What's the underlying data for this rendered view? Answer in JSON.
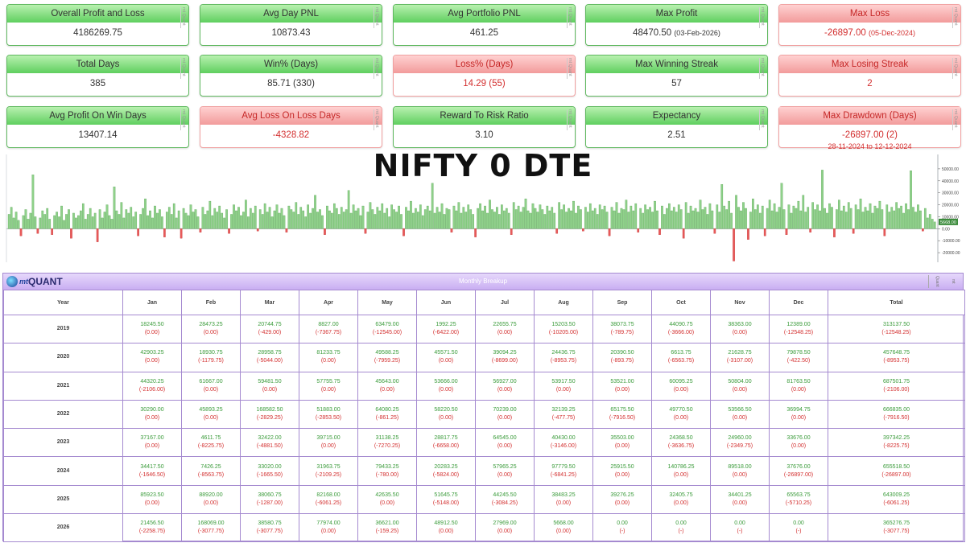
{
  "cards": [
    {
      "label": "Overall Profit and Loss",
      "value": "4186269.75",
      "tone": "g"
    },
    {
      "label": "Avg Day PNL",
      "value": "10873.43",
      "tone": "g"
    },
    {
      "label": "Avg Portfolio PNL",
      "value": "461.25",
      "tone": "g"
    },
    {
      "label": "Max Profit",
      "value": "48470.50",
      "extra": "(03-Feb-2026)",
      "tone": "g"
    },
    {
      "label": "Max Loss",
      "value": "-26897.00",
      "extra": "(05-Dec-2024)",
      "tone": "r"
    },
    {
      "label": "Total Days",
      "value": "385",
      "tone": "g"
    },
    {
      "label": "Win% (Days)",
      "value": "85.71 (330)",
      "tone": "g"
    },
    {
      "label": "Loss% (Days)",
      "value": "14.29 (55)",
      "tone": "r"
    },
    {
      "label": "Max Winning Streak",
      "value": "57",
      "tone": "g"
    },
    {
      "label": "Max Losing Streak",
      "value": "2",
      "tone": "r"
    },
    {
      "label": "Avg Profit On Win Days",
      "value": "13407.14",
      "tone": "g"
    },
    {
      "label": "Avg Loss On Loss Days",
      "value": "-4328.82",
      "tone": "r"
    },
    {
      "label": "Reward To Risk Ratio",
      "value": "3.10",
      "tone": "g"
    },
    {
      "label": "Expectancy",
      "value": "2.51",
      "tone": "g"
    },
    {
      "label": "Max Drawdown (Days)",
      "value": "-26897.00 (2)",
      "sub": "28-11-2024 to 12-12-2024",
      "tone": "r"
    }
  ],
  "watermark": "mt Quant",
  "chart_data": {
    "type": "bar",
    "title": "NIFTY 0 DTE",
    "ylim": [
      -28000,
      62000
    ],
    "yticks": [
      -20000,
      -10000,
      0,
      10000,
      20000,
      30000,
      40000,
      50000
    ],
    "ytick_labels": [
      "-20000.00",
      "-10000.00",
      "0.00",
      "10000.00",
      "20000.00",
      "30000.00",
      "40000.00",
      "50000.00"
    ],
    "last_value_label": "5668.00",
    "values": [
      12000,
      18000,
      9000,
      14000,
      7000,
      -6000,
      11000,
      16000,
      8000,
      13000,
      45000,
      10000,
      -4000,
      9000,
      15000,
      12000,
      17000,
      8000,
      -5000,
      11000,
      14000,
      10000,
      19000,
      7000,
      12000,
      16000,
      -8000,
      13000,
      9000,
      11000,
      15000,
      21000,
      8000,
      12000,
      17000,
      10000,
      13000,
      -11000,
      16000,
      9000,
      14000,
      20000,
      11000,
      8000,
      35000,
      15000,
      12000,
      22000,
      9000,
      16000,
      13000,
      18000,
      10000,
      14000,
      -6000,
      12000,
      17000,
      25000,
      11000,
      15000,
      9000,
      19000,
      13000,
      16000,
      10000,
      -7000,
      14000,
      18000,
      12000,
      21000,
      9000,
      15000,
      -8000,
      17000,
      13000,
      11000,
      20000,
      14000,
      16000,
      10000,
      -3000,
      18000,
      12000,
      15000,
      23000,
      11000,
      17000,
      14000,
      19000,
      13000,
      9000,
      16000,
      -4000,
      12000,
      20000,
      15000,
      18000,
      11000,
      14000,
      24000,
      10000,
      17000,
      13000,
      19000,
      -2000,
      16000,
      12000,
      21000,
      14000,
      18000,
      10000,
      15000,
      20000,
      13000,
      17000,
      11000,
      -3000,
      19000,
      16000,
      14000,
      22000,
      12000,
      18000,
      15000,
      10000,
      20000,
      13000,
      17000,
      28000,
      14000,
      16000,
      11000,
      -5000,
      19000,
      15000,
      13000,
      21000,
      17000,
      12000,
      18000,
      14000,
      16000,
      32000,
      13000,
      20000,
      15000,
      17000,
      11000,
      19000,
      -4000,
      14000,
      22000,
      16000,
      12000,
      18000,
      15000,
      21000,
      13000,
      17000,
      10000,
      20000,
      16000,
      14000,
      19000,
      12000,
      -6000,
      18000,
      15000,
      23000,
      13000,
      17000,
      14000,
      20000,
      11000,
      16000,
      19000,
      15000,
      38000,
      13000,
      18000,
      14000,
      21000,
      12000,
      17000,
      16000,
      -3000,
      19000,
      15000,
      22000,
      13000,
      18000,
      14000,
      20000,
      16000,
      12000,
      -7000,
      17000,
      21000,
      15000,
      19000,
      13000,
      24000,
      16000,
      14000,
      18000,
      12000,
      20000,
      15000,
      17000,
      13000,
      -5000,
      22000,
      16000,
      19000,
      14000,
      18000,
      25000,
      15000,
      13000,
      21000,
      17000,
      14000,
      20000,
      16000,
      12000,
      19000,
      15000,
      18000,
      13000,
      -4000,
      22000,
      16000,
      20000,
      14000,
      17000,
      15000,
      23000,
      13000,
      19000,
      16000,
      -2000,
      18000,
      14000,
      21000,
      15000,
      17000,
      12000,
      20000,
      16000,
      19000,
      14000,
      -6000,
      18000,
      15000,
      22000,
      13000,
      17000,
      16000,
      24000,
      14000,
      19000,
      15000,
      21000,
      -3000,
      17000,
      13000,
      20000,
      16000,
      18000,
      14000,
      23000,
      15000,
      -5000,
      19000,
      12000,
      17000,
      21000,
      15000,
      18000,
      14000,
      20000,
      16000,
      -8000,
      22000,
      13000,
      19000,
      15000,
      17000,
      14000,
      24000,
      16000,
      18000,
      12000,
      21000,
      15000,
      -4000,
      20000,
      14000,
      37000,
      19000,
      16000,
      23000,
      13000,
      -27000,
      28000,
      18000,
      15000,
      22000,
      17000,
      -9000,
      14000,
      25000,
      16000,
      20000,
      13000,
      19000,
      -6000,
      17000,
      24000,
      15000,
      21000,
      14000,
      18000,
      38000,
      16000,
      -5000,
      20000,
      13000,
      19000,
      17000,
      23000,
      15000,
      28000,
      14000,
      18000,
      -3000,
      22000,
      16000,
      20000,
      15000,
      49000,
      17000,
      13000,
      21000,
      18000,
      -7000,
      16000,
      24000,
      15000,
      19000,
      14000,
      22000,
      17000,
      -4000,
      20000,
      16000,
      25000,
      14000,
      18000,
      15000,
      21000,
      13000,
      19000,
      17000,
      23000,
      16000,
      -6000,
      20000,
      14000,
      18000,
      15000,
      22000,
      17000,
      19000,
      13000,
      21000,
      16000,
      48470,
      18000,
      14000,
      20000,
      15000,
      -2000,
      17000,
      9000,
      12000,
      8000,
      5668
    ]
  },
  "table": {
    "header": "Monthly Breakup",
    "columns": [
      "Year",
      "Jan",
      "Feb",
      "Mar",
      "Apr",
      "May",
      "Jun",
      "Jul",
      "Aug",
      "Sep",
      "Oct",
      "Nov",
      "Dec",
      "Total"
    ],
    "rows": [
      {
        "year": "2019",
        "cells": [
          [
            "18245.50",
            "(0.00)"
          ],
          [
            "28473.25",
            "(0.00)"
          ],
          [
            "20744.75",
            "(-429.00)"
          ],
          [
            "8827.00",
            "(-7367.75)"
          ],
          [
            "63479.00",
            "(-12545.00)"
          ],
          [
            "1992.25",
            "(-6422.00)"
          ],
          [
            "22655.75",
            "(0.00)"
          ],
          [
            "15203.50",
            "(-10205.00)"
          ],
          [
            "38073.75",
            "(-789.75)"
          ],
          [
            "44090.75",
            "(-3666.00)"
          ],
          [
            "38363.00",
            "(0.00)"
          ],
          [
            "12389.00",
            "(-12548.25)"
          ],
          [
            "313137.50",
            "(-12548.25)"
          ]
        ]
      },
      {
        "year": "2020",
        "cells": [
          [
            "42903.25",
            "(0.00)"
          ],
          [
            "18930.75",
            "(-1179.75)"
          ],
          [
            "28958.75",
            "(-5044.00)"
          ],
          [
            "81233.75",
            "(0.00)"
          ],
          [
            "49588.25",
            "(-7959.25)"
          ],
          [
            "45571.50",
            "(0.00)"
          ],
          [
            "39094.25",
            "(-8699.00)"
          ],
          [
            "24436.75",
            "(-8953.75)"
          ],
          [
            "20390.50",
            "(-893.75)"
          ],
          [
            "6613.75",
            "(-6563.75)"
          ],
          [
            "21628.75",
            "(-3107.00)"
          ],
          [
            "79878.50",
            "(-422.50)"
          ],
          [
            "457648.75",
            "(-8953.75)"
          ]
        ]
      },
      {
        "year": "2021",
        "cells": [
          [
            "44320.25",
            "(-2106.00)"
          ],
          [
            "61667.00",
            "(0.00)"
          ],
          [
            "59481.50",
            "(0.00)"
          ],
          [
            "57755.75",
            "(0.00)"
          ],
          [
            "45643.00",
            "(0.00)"
          ],
          [
            "53666.00",
            "(0.00)"
          ],
          [
            "56927.00",
            "(0.00)"
          ],
          [
            "53917.50",
            "(0.00)"
          ],
          [
            "53521.00",
            "(0.00)"
          ],
          [
            "60095.25",
            "(0.00)"
          ],
          [
            "50804.00",
            "(0.00)"
          ],
          [
            "81763.50",
            "(0.00)"
          ],
          [
            "687501.75",
            "(-2106.00)"
          ]
        ]
      },
      {
        "year": "2022",
        "cells": [
          [
            "30290.00",
            "(0.00)"
          ],
          [
            "45893.25",
            "(0.00)"
          ],
          [
            "168582.50",
            "(-2829.25)"
          ],
          [
            "51883.00",
            "(-2853.50)"
          ],
          [
            "64080.25",
            "(-861.25)"
          ],
          [
            "58220.50",
            "(0.00)"
          ],
          [
            "70239.00",
            "(0.00)"
          ],
          [
            "32139.25",
            "(-477.75)"
          ],
          [
            "65175.50",
            "(-7916.50)"
          ],
          [
            "49770.50",
            "(0.00)"
          ],
          [
            "53566.50",
            "(0.00)"
          ],
          [
            "36994.75",
            "(0.00)"
          ],
          [
            "666835.00",
            "(-7916.50)"
          ]
        ]
      },
      {
        "year": "2023",
        "cells": [
          [
            "37167.00",
            "(0.00)"
          ],
          [
            "4611.75",
            "(-8225.75)"
          ],
          [
            "32422.00",
            "(-4881.50)"
          ],
          [
            "39715.00",
            "(0.00)"
          ],
          [
            "31138.25",
            "(-7270.25)"
          ],
          [
            "28817.75",
            "(-6658.00)"
          ],
          [
            "64545.00",
            "(0.00)"
          ],
          [
            "40430.00",
            "(-3146.00)"
          ],
          [
            "35503.00",
            "(0.00)"
          ],
          [
            "24368.50",
            "(-3636.75)"
          ],
          [
            "24960.00",
            "(-2349.75)"
          ],
          [
            "33676.00",
            "(0.00)"
          ],
          [
            "397342.25",
            "(-8225.75)"
          ]
        ]
      },
      {
        "year": "2024",
        "cells": [
          [
            "34417.50",
            "(-1646.50)"
          ],
          [
            "7426.25",
            "(-8563.75)"
          ],
          [
            "33020.00",
            "(-1665.50)"
          ],
          [
            "31963.75",
            "(-2109.25)"
          ],
          [
            "79433.25",
            "(-780.00)"
          ],
          [
            "20283.25",
            "(-5824.00)"
          ],
          [
            "57965.25",
            "(0.00)"
          ],
          [
            "97779.50",
            "(-6841.25)"
          ],
          [
            "25915.50",
            "(0.00)"
          ],
          [
            "140786.25",
            "(0.00)"
          ],
          [
            "89518.00",
            "(0.00)"
          ],
          [
            "37676.00",
            "(-26897.00)"
          ],
          [
            "655518.50",
            "(-26897.00)"
          ]
        ]
      },
      {
        "year": "2025",
        "cells": [
          [
            "85923.50",
            "(0.00)"
          ],
          [
            "88920.00",
            "(0.00)"
          ],
          [
            "38060.75",
            "(-1287.00)"
          ],
          [
            "82168.00",
            "(-6061.25)"
          ],
          [
            "42635.50",
            "(0.00)"
          ],
          [
            "51645.75",
            "(-5148.00)"
          ],
          [
            "44245.50",
            "(-3084.25)"
          ],
          [
            "38483.25",
            "(0.00)"
          ],
          [
            "39276.25",
            "(0.00)"
          ],
          [
            "32405.75",
            "(0.00)"
          ],
          [
            "34401.25",
            "(0.00)"
          ],
          [
            "65563.75",
            "(-5710.25)"
          ],
          [
            "643009.25",
            "(-6061.25)"
          ]
        ]
      },
      {
        "year": "2026",
        "cells": [
          [
            "21456.50",
            "(-2258.75)"
          ],
          [
            "168069.00",
            "(-3077.75)"
          ],
          [
            "38580.75",
            "(-3077.75)"
          ],
          [
            "77974.00",
            "(0.00)"
          ],
          [
            "36621.00",
            "(-159.25)"
          ],
          [
            "48912.50",
            "(0.00)"
          ],
          [
            "27969.00",
            "(0.00)"
          ],
          [
            "5668.00",
            "(0.00)"
          ],
          [
            "0.00",
            "(-)"
          ],
          [
            "0.00",
            "(-)"
          ],
          [
            "0.00",
            "(-)"
          ],
          [
            "0.00",
            "(-)"
          ],
          [
            "365276.75",
            "(-3077.75)"
          ]
        ]
      }
    ]
  }
}
